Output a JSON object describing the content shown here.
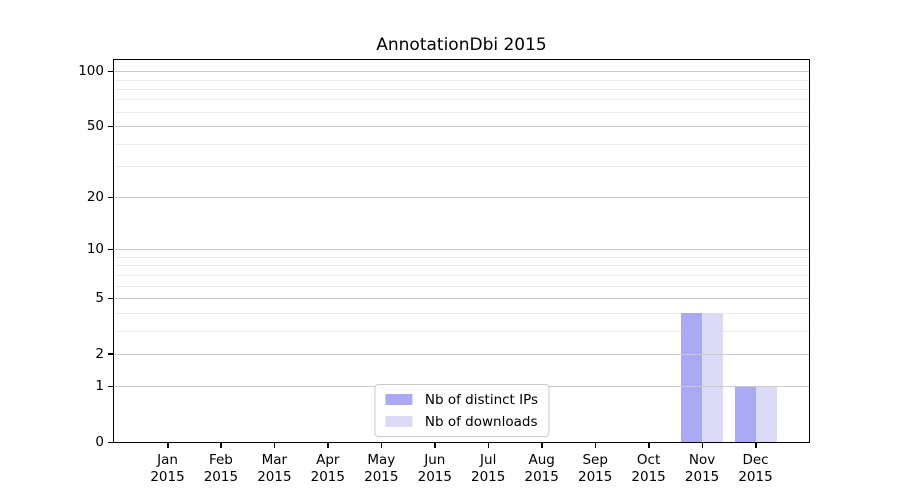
{
  "figure": {
    "title": "AnnotationDbi 2015"
  },
  "chart_data": {
    "type": "bar",
    "title": "AnnotationDbi 2015",
    "categories": [
      "Jan",
      "Feb",
      "Mar",
      "Apr",
      "May",
      "Jun",
      "Jul",
      "Aug",
      "Sep",
      "Oct",
      "Nov",
      "Dec"
    ],
    "x_tick_year": "2015",
    "series": [
      {
        "name": "Nb of distinct IPs",
        "color": "#a9a9f4",
        "values": [
          0,
          0,
          0,
          0,
          0,
          0,
          0,
          0,
          0,
          0,
          4,
          1
        ]
      },
      {
        "name": "Nb of downloads",
        "color": "#dbdbf8",
        "values": [
          0,
          0,
          0,
          0,
          0,
          0,
          0,
          0,
          0,
          0,
          4,
          1
        ]
      }
    ],
    "xlabel": "",
    "ylabel": "",
    "y_axis": {
      "scale": "log10(value+1)",
      "tick_labels": [
        "0",
        "1",
        "2",
        "5",
        "10",
        "20",
        "50",
        "100"
      ],
      "major_ticks": [
        0,
        1,
        2,
        5,
        10,
        20,
        50,
        100
      ],
      "minor_ticks": [
        3,
        4,
        6,
        7,
        8,
        9,
        30,
        40,
        60,
        70,
        80,
        90
      ],
      "ylim": [
        0,
        115
      ]
    },
    "legend": {
      "position": "lower center",
      "entries": [
        "Nb of distinct IPs",
        "Nb of downloads"
      ]
    },
    "grid": {
      "enabled": true,
      "major_color": "#cbcbcb",
      "minor_color": "#ececec"
    }
  },
  "colors": {
    "background": "#ffffff",
    "axis": "#000000",
    "bar_distinct_ips": "#a9a9f4",
    "bar_downloads": "#dbdbf8",
    "legend_border": "#c9c9c9"
  }
}
